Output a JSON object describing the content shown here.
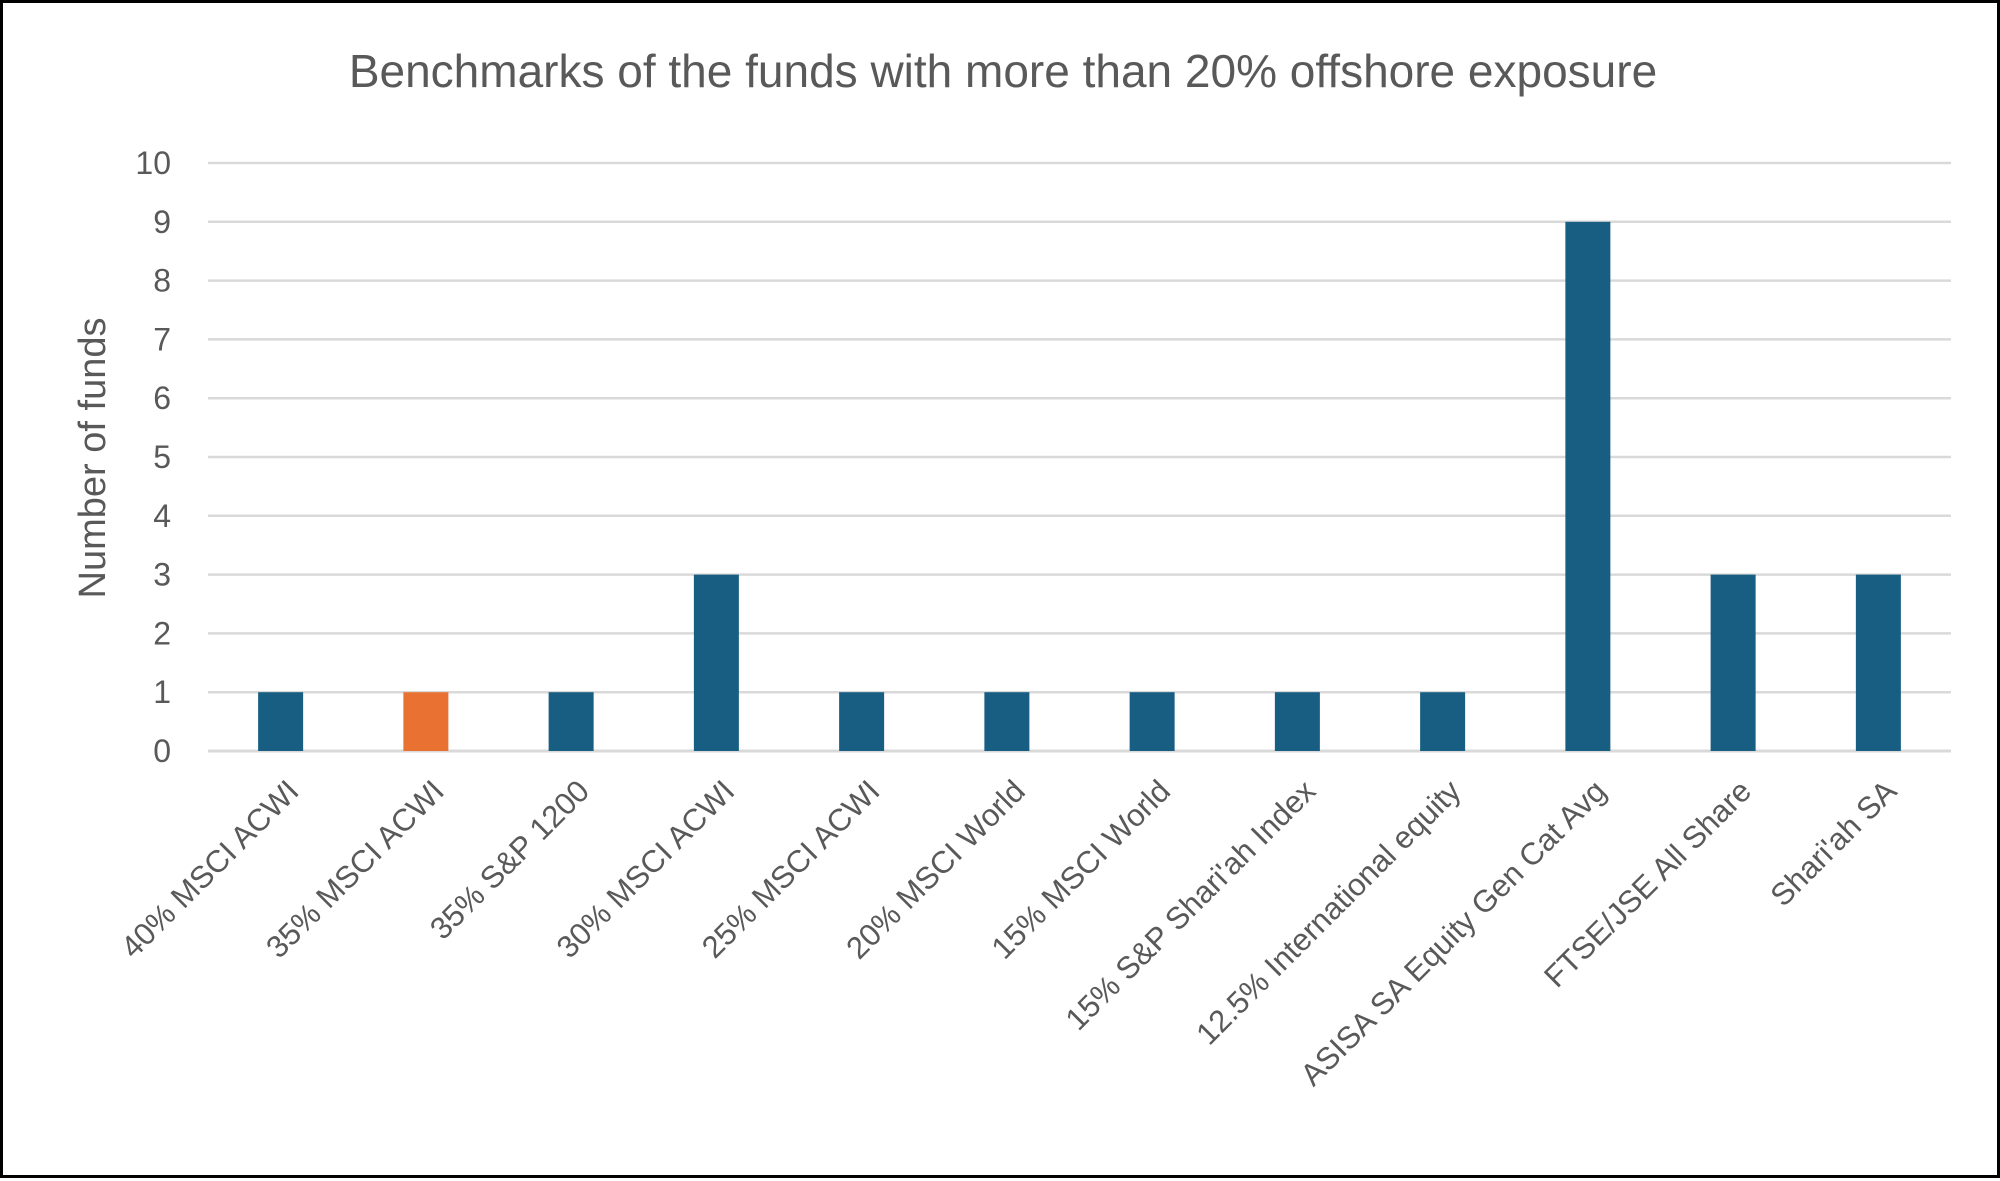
{
  "chart_data": {
    "type": "bar",
    "title": "Benchmarks of the funds with more than 20% offshore exposure",
    "xlabel": "",
    "ylabel": "Number of funds",
    "ylim": [
      0,
      10
    ],
    "yticks": [
      0,
      1,
      2,
      3,
      4,
      5,
      6,
      7,
      8,
      9,
      10
    ],
    "grid": true,
    "legend": "none",
    "categories": [
      "40% MSCI ACWI",
      "35% MSCI ACWI",
      "35% S&P 1200",
      "30% MSCI ACWI",
      "25% MSCI ACWI",
      "20% MSCI World",
      "15% MSCI World",
      "15% S&P Shari'ah Index",
      "12.5% International equity",
      "ASISA SA Equity Gen Cat Avg",
      "FTSE/JSE All Share",
      "Shari'ah SA"
    ],
    "values": [
      1,
      1,
      1,
      3,
      1,
      1,
      1,
      1,
      1,
      9,
      3,
      3
    ],
    "colors": {
      "bar": "#175E82",
      "highlight": "#E97132",
      "grid": "#D9D9D9",
      "text": "#595959"
    },
    "highlighted_categories": [
      "35% MSCI ACWI"
    ]
  }
}
